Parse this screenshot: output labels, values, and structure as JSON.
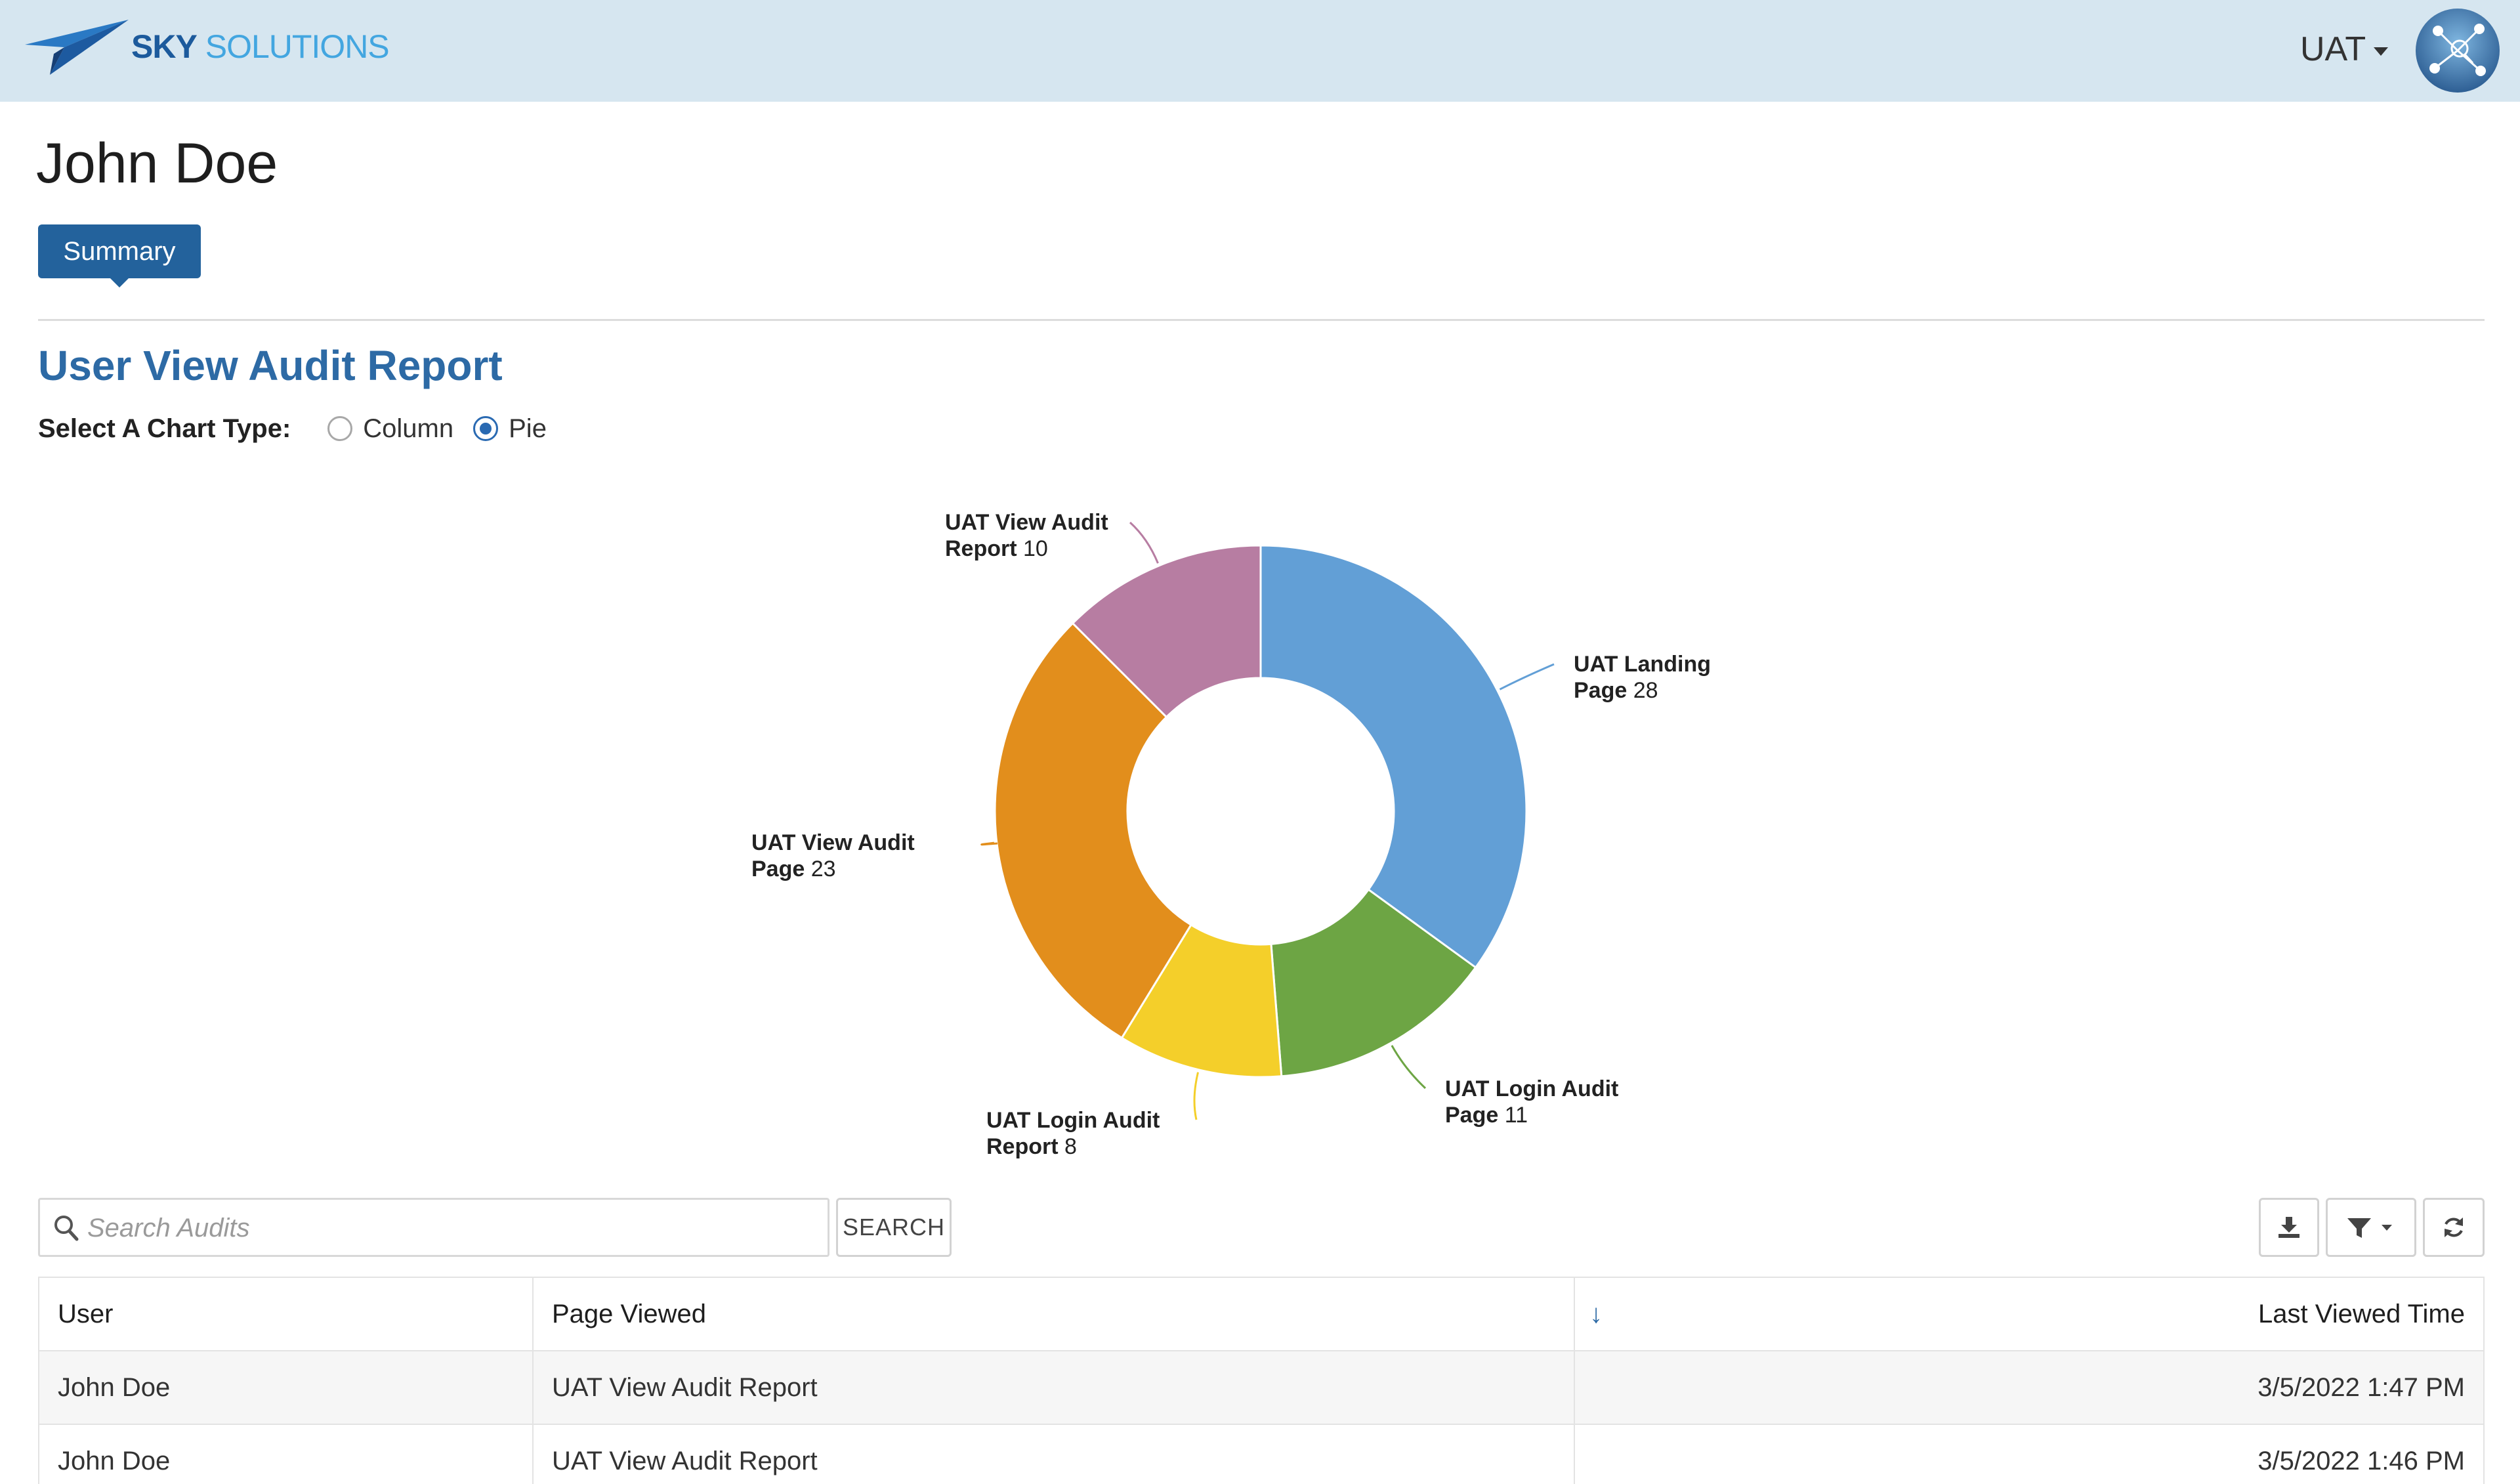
{
  "header": {
    "brand_primary": "SKY",
    "brand_secondary": "SOLUTIONS",
    "environment": "UAT",
    "logo_icon": "paper-plane-icon",
    "avatar_icon": "network-avatar-icon"
  },
  "page": {
    "person_name": "John Doe",
    "tab_label": "Summary",
    "report_title": "User View Audit Report",
    "chart_type_label": "Select A Chart Type:",
    "chart_type_options": [
      "Column",
      "Pie"
    ],
    "chart_type_selected": "Pie"
  },
  "chart_data": {
    "type": "pie",
    "donut": true,
    "title": "",
    "slices": [
      {
        "name": "UAT Landing Page",
        "value": 28,
        "color": "#629fd6"
      },
      {
        "name": "UAT Login Audit Page",
        "value": 11,
        "color": "#6da544"
      },
      {
        "name": "UAT Login Audit Report",
        "value": 8,
        "color": "#f4cf2a"
      },
      {
        "name": "UAT View Audit Page",
        "value": 23,
        "color": "#e28e1c"
      },
      {
        "name": "UAT View Audit Report",
        "value": 10,
        "color": "#b77da2"
      }
    ],
    "labels": [
      {
        "line1": "UAT Landing",
        "line2": "Page",
        "value": "28"
      },
      {
        "line1": "UAT Login Audit",
        "line2": "Page",
        "value": "11"
      },
      {
        "line1": "UAT Login Audit",
        "line2": "Report",
        "value": "8"
      },
      {
        "line1": "UAT View Audit",
        "line2": "Page",
        "value": "23"
      },
      {
        "line1": "UAT View Audit",
        "line2": "Report",
        "value": "10"
      }
    ]
  },
  "search": {
    "placeholder": "Search Audits",
    "button_label": "SEARCH"
  },
  "toolbar": {
    "download_icon": "download-icon",
    "filter_icon": "filter-icon",
    "refresh_icon": "refresh-icon"
  },
  "table": {
    "columns": [
      "User",
      "Page Viewed",
      "Last Viewed Time"
    ],
    "sort_indicator": "↓",
    "rows": [
      {
        "user": "John Doe",
        "page": "UAT View Audit Report",
        "time": "3/5/2022 1:47 PM"
      },
      {
        "user": "John Doe",
        "page": "UAT View Audit Report",
        "time": "3/5/2022 1:46 PM"
      }
    ]
  }
}
